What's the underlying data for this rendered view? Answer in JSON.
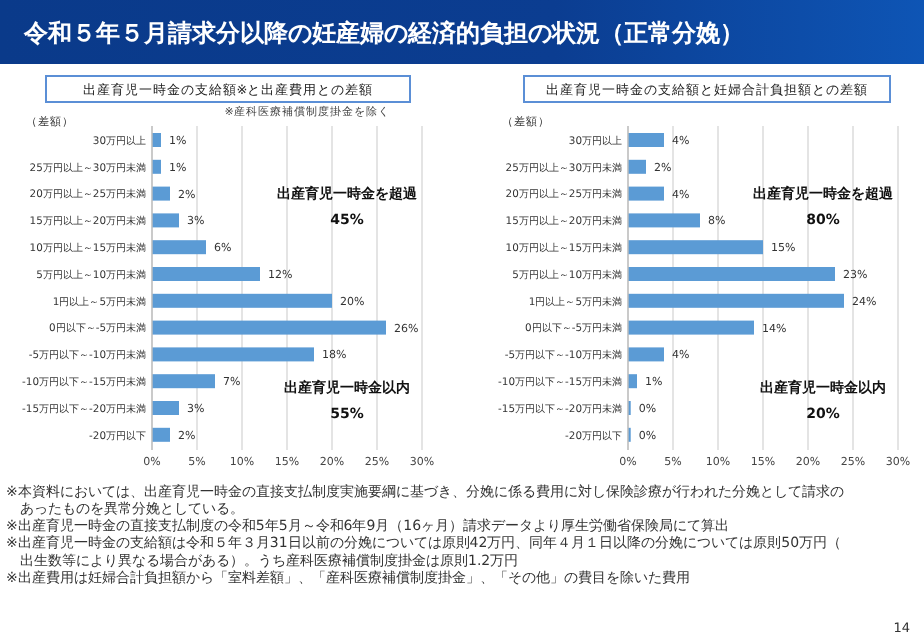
{
  "chart_data": [
    {
      "type": "bar",
      "orientation": "horizontal",
      "title": "出産育児一時金の支給額※と出産費用との差額",
      "subtitle": "※産科医療補償制度掛金を除く",
      "ylabel": "（差額）",
      "categories": [
        "30万円以上",
        "25万円以上～30万円未満",
        "20万円以上～25万円未満",
        "15万円以上～20万円未満",
        "10万円以上～15万円未満",
        "5万円以上～10万円未満",
        "1円以上～5万円未満",
        "0円以下～-5万円未満",
        "-5万円以下～-10万円未満",
        "-10万円以下～-15万円未満",
        "-15万円以下～-20万円未満",
        "-20万円以下"
      ],
      "values": [
        1,
        1,
        2,
        3,
        6,
        12,
        20,
        26,
        18,
        7,
        3,
        2
      ],
      "value_labels": [
        "1%",
        "1%",
        "2%",
        "3%",
        "6%",
        "12%",
        "20%",
        "26%",
        "18%",
        "7%",
        "3%",
        "2%"
      ],
      "color": "#5b9bd5",
      "xlim": [
        0,
        30
      ],
      "xticks": [
        {
          "value": 0,
          "label": "0%"
        },
        {
          "value": 5,
          "label": "5%"
        },
        {
          "value": 10,
          "label": "10%"
        },
        {
          "value": 15,
          "label": "15%"
        },
        {
          "value": 20,
          "label": "20%"
        },
        {
          "value": 25,
          "label": "25%"
        },
        {
          "value": 30,
          "label": "30%"
        }
      ],
      "grid": "x",
      "annotations": [
        "出産育児一時金を超過",
        "45%",
        "出産育児一時金以内",
        "55%",
        "令和５年５月請求分以降の妊産婦の経済的負担の状況（正常分娩）",
        "※本資料においては、出産育児一時金の直接支払制度実施要綱に基づき、分娩に係る費用に対し保険診療が行われた分娩として請求のあったものを異常分娩としている。",
        "※出産育児一時金の直接支払制度の令和5年5月～令和6年9月（16ヶ月）請求データより厚生労働省保険局にて算出",
        "※出産育児一時金の支給額は令和５年３月31日以前の分娩については原則42万円、同年４月１日以降の分娩については原則50万円（出生数等により異なる場合がある）。うち産科医療補償制度掛金は原則1.2万円",
        "※出産費用は妊婦合計負担額から「室料差額」、「産科医療補償制度掛金」、「その他」の費目を除いた費用"
      ]
    },
    {
      "type": "bar",
      "orientation": "horizontal",
      "title": "出産育児一時金の支給額と妊婦合計負担額との差額",
      "ylabel": "（差額）",
      "categories": [
        "30万円以上",
        "25万円以上～30万円未満",
        "20万円以上～25万円未満",
        "15万円以上～20万円未満",
        "10万円以上～15万円未満",
        "5万円以上～10万円未満",
        "1円以上～5万円未満",
        "0円以下～-5万円未満",
        "-5万円以下～-10万円未満",
        "-10万円以下～-15万円未満",
        "-15万円以下～-20万円未満",
        "-20万円以下"
      ],
      "values": [
        4,
        2,
        4,
        8,
        15,
        23,
        24,
        14,
        4,
        1,
        0.3,
        0.3
      ],
      "value_labels": [
        "4%",
        "2%",
        "4%",
        "8%",
        "15%",
        "23%",
        "24%",
        "14%",
        "4%",
        "1%",
        "0%",
        "0%"
      ],
      "color": "#5b9bd5",
      "xlim": [
        0,
        30
      ],
      "xticks": [
        {
          "value": 0,
          "label": "0%"
        },
        {
          "value": 5,
          "label": "5%"
        },
        {
          "value": 10,
          "label": "10%"
        },
        {
          "value": 15,
          "label": "15%"
        },
        {
          "value": 20,
          "label": "20%"
        },
        {
          "value": 25,
          "label": "25%"
        },
        {
          "value": 30,
          "label": "30%"
        }
      ],
      "grid": "x",
      "annotations": [
        "出産育児一時金を超過",
        "80%",
        "出産育児一時金以内",
        "20%",
        "14"
      ]
    }
  ]
}
